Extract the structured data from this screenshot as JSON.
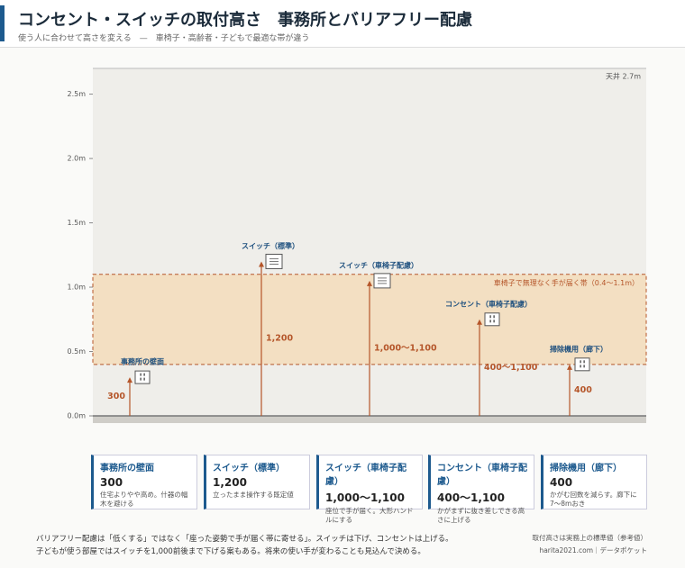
{
  "header": {
    "title": "コンセント・スイッチの取付高さ　事務所とバリアフリー配慮",
    "subtitle": "使う人に合わせて高さを変える　—　車椅子・高齢者・子どもで最適な帯が違う"
  },
  "chart_data": {
    "type": "height-diagram",
    "ylim": [
      0,
      2.7
    ],
    "yticks": [
      {
        "value": 0,
        "label": "0.0m"
      },
      {
        "value": 0.5,
        "label": "0.5m"
      },
      {
        "value": 1,
        "label": "1.0m"
      },
      {
        "value": 1.5,
        "label": "1.5m"
      },
      {
        "value": 2,
        "label": "2.0m"
      },
      {
        "value": 2.5,
        "label": "2.5m"
      }
    ],
    "ceiling_label": "天井 2.7m",
    "band": {
      "low": 0.4,
      "high": 1.1,
      "label": "車椅子で無理なく手が届く帯（0.4〜1.1m）",
      "color": "#f3dfc2"
    },
    "color": "#b5562a",
    "items": [
      {
        "name": "事務所の壁面",
        "low": 0.3,
        "high": 0.3,
        "value_label": "300",
        "description": "住宅よりやや高め。什器の幅木を避ける",
        "icon": "outlet"
      },
      {
        "name": "スイッチ（標準）",
        "low": 1.2,
        "high": 1.2,
        "value_label": "1,200",
        "description": "立ったまま操作する既定値",
        "icon": "switch"
      },
      {
        "name": "スイッチ（車椅子配慮）",
        "low": 1.0,
        "high": 1.1,
        "value_label": "1,000〜1,100",
        "description": "座位で手が届く。大形ハンドルにする",
        "icon": "switch"
      },
      {
        "name": "コンセント（車椅子配慮）",
        "low": 0.4,
        "high": 1.1,
        "value_label": "400〜1,100",
        "description": "かがまずに抜き差しできる高さに上げる",
        "icon": "outlet"
      },
      {
        "name": "掃除機用（廊下）",
        "low": 0.4,
        "high": 0.4,
        "value_label": "400",
        "description": "かがむ回数を減らす。廊下に7〜8mおき",
        "icon": "outlet"
      }
    ]
  },
  "footer": {
    "notes": [
      "バリアフリー配慮は「低くする」ではなく「座った姿勢で手が届く帯に寄せる」。スイッチは下げ、コンセントは上げる。",
      "子どもが使う部屋ではスイッチを1,000前後まで下げる案もある。将来の使い手が変わることも見込んで決める。"
    ],
    "source": [
      "取付高さは実務上の標準値（参考値）",
      "harita2021.com｜データポケット"
    ]
  }
}
